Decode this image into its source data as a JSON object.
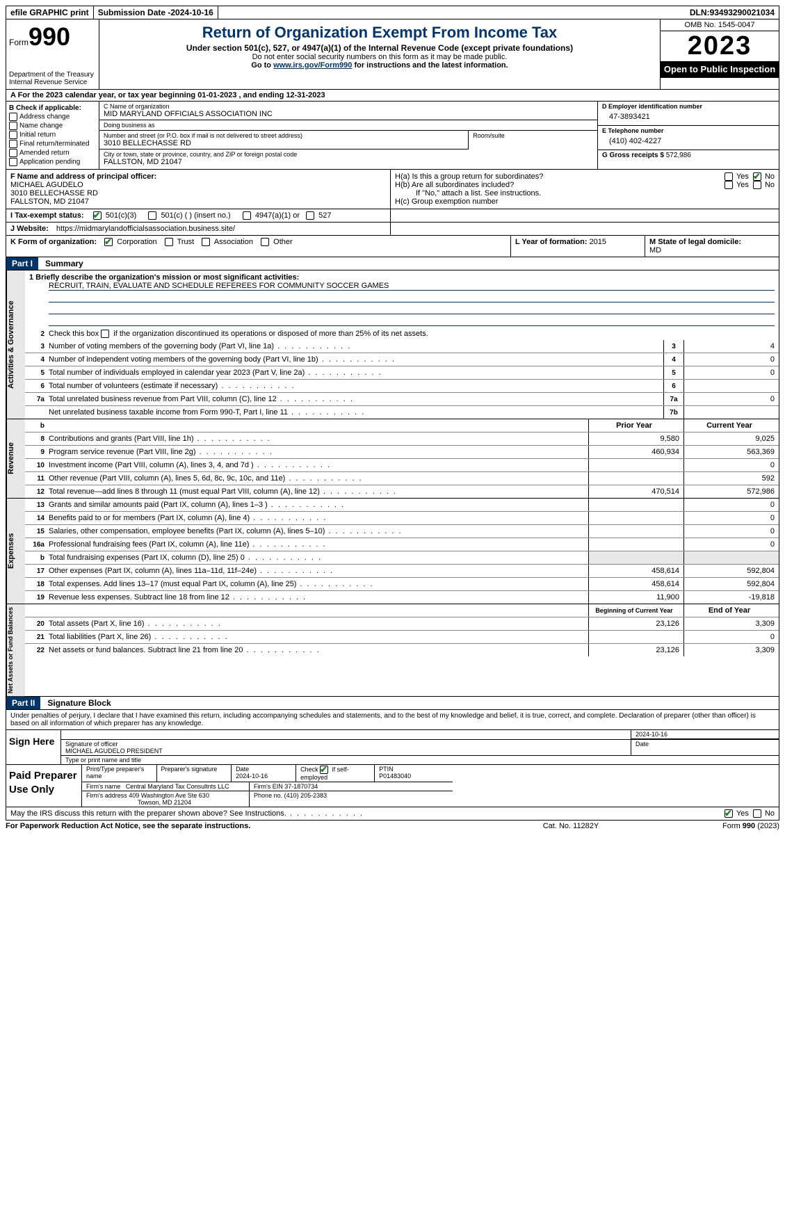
{
  "topbar": {
    "efile": "efile GRAPHIC print",
    "subdate_label": "Submission Date - ",
    "subdate": "2024-10-16",
    "dln_label": "DLN: ",
    "dln": "93493290021034"
  },
  "header": {
    "form_label": "Form",
    "form_num": "990",
    "dept": "Department of the Treasury\nInternal Revenue Service",
    "title": "Return of Organization Exempt From Income Tax",
    "sub1": "Under section 501(c), 527, or 4947(a)(1) of the Internal Revenue Code (except private foundations)",
    "sub2": "Do not enter social security numbers on this form as it may be made public.",
    "sub3a": "Go to ",
    "sub3link": "www.irs.gov/Form990",
    "sub3b": " for instructions and the latest information.",
    "omb": "OMB No. 1545-0047",
    "year": "2023",
    "inspect": "Open to Public Inspection"
  },
  "lineA": {
    "text": "A For the 2023 calendar year, or tax year beginning 01-01-2023   , and ending 12-31-2023"
  },
  "boxB": {
    "label": "B Check if applicable:",
    "items": [
      "Address change",
      "Name change",
      "Initial return",
      "Final return/terminated",
      "Amended return",
      "Application pending"
    ]
  },
  "boxC": {
    "name_label": "C Name of organization",
    "name": "MID MARYLAND OFFICIALS ASSOCIATION INC",
    "dba_label": "Doing business as",
    "dba": "",
    "street_label": "Number and street (or P.O. box if mail is not delivered to street address)",
    "street": "3010 BELLECHASSE RD",
    "room_label": "Room/suite",
    "city_label": "City or town, state or province, country, and ZIP or foreign postal code",
    "city": "FALLSTON, MD  21047"
  },
  "boxD": {
    "label": "D Employer identification number",
    "val": "47-3893421"
  },
  "boxE": {
    "label": "E Telephone number",
    "val": "(410) 402-4227"
  },
  "boxG": {
    "label": "G Gross receipts $ ",
    "val": "572,986"
  },
  "boxF": {
    "label": "F  Name and address of principal officer:",
    "l1": "MICHAEL AGUDELO",
    "l2": "3010 BELLECHASSE RD",
    "l3": "FALLSTON, MD  21047"
  },
  "boxH": {
    "a": "H(a)  Is this a group return for subordinates?",
    "b": "H(b)  Are all subordinates included?",
    "bnote": "If \"No,\" attach a list. See instructions.",
    "c": "H(c)  Group exemption number"
  },
  "boxI": {
    "label": "I   Tax-exempt status:",
    "o1": "501(c)(3)",
    "o2": "501(c) (  ) (insert no.)",
    "o3": "4947(a)(1) or",
    "o4": "527"
  },
  "boxJ": {
    "label": "J   Website:",
    "val": "https://midmarylandofficialsassociation.business.site/"
  },
  "boxK": {
    "label": "K Form of organization:",
    "opts": [
      "Corporation",
      "Trust",
      "Association",
      "Other"
    ]
  },
  "boxL": {
    "label": "L Year of formation: ",
    "val": "2015"
  },
  "boxM": {
    "label": "M State of legal domicile:",
    "val": "MD"
  },
  "part1": {
    "hdr": "Part I",
    "title": "Summary"
  },
  "mission": {
    "q": "1  Briefly describe the organization's mission or most significant activities:",
    "a": "RECRUIT, TRAIN, EVALUATE AND SCHEDULE REFEREES FOR COMMUNITY SOCCER GAMES"
  },
  "gov": {
    "side": "Activities & Governance",
    "l2": "Check this box         if the organization discontinued its operations or disposed of more than 25% of its net assets.",
    "rows": [
      {
        "n": "3",
        "d": "Number of voting members of the governing body (Part VI, line 1a)",
        "box": "3",
        "v": "4"
      },
      {
        "n": "4",
        "d": "Number of independent voting members of the governing body (Part VI, line 1b)",
        "box": "4",
        "v": "0"
      },
      {
        "n": "5",
        "d": "Total number of individuals employed in calendar year 2023 (Part V, line 2a)",
        "box": "5",
        "v": "0"
      },
      {
        "n": "6",
        "d": "Total number of volunteers (estimate if necessary)",
        "box": "6",
        "v": ""
      },
      {
        "n": "7a",
        "d": "Total unrelated business revenue from Part VIII, column (C), line 12",
        "box": "7a",
        "v": "0"
      },
      {
        "n": "",
        "d": "Net unrelated business taxable income from Form 990-T, Part I, line 11",
        "box": "7b",
        "v": ""
      }
    ]
  },
  "rev": {
    "side": "Revenue",
    "hdr_prior": "Prior Year",
    "hdr_curr": "Current Year",
    "rows": [
      {
        "n": "8",
        "d": "Contributions and grants (Part VIII, line 1h)",
        "p": "9,580",
        "c": "9,025"
      },
      {
        "n": "9",
        "d": "Program service revenue (Part VIII, line 2g)",
        "p": "460,934",
        "c": "563,369"
      },
      {
        "n": "10",
        "d": "Investment income (Part VIII, column (A), lines 3, 4, and 7d )",
        "p": "",
        "c": "0"
      },
      {
        "n": "11",
        "d": "Other revenue (Part VIII, column (A), lines 5, 6d, 8c, 9c, 10c, and 11e)",
        "p": "",
        "c": "592"
      },
      {
        "n": "12",
        "d": "Total revenue—add lines 8 through 11 (must equal Part VIII, column (A), line 12)",
        "p": "470,514",
        "c": "572,986"
      }
    ]
  },
  "exp": {
    "side": "Expenses",
    "rows": [
      {
        "n": "13",
        "d": "Grants and similar amounts paid (Part IX, column (A), lines 1–3 )",
        "p": "",
        "c": "0"
      },
      {
        "n": "14",
        "d": "Benefits paid to or for members (Part IX, column (A), line 4)",
        "p": "",
        "c": "0"
      },
      {
        "n": "15",
        "d": "Salaries, other compensation, employee benefits (Part IX, column (A), lines 5–10)",
        "p": "",
        "c": "0"
      },
      {
        "n": "16a",
        "d": "Professional fundraising fees (Part IX, column (A), line 11e)",
        "p": "",
        "c": "0"
      },
      {
        "n": "b",
        "d": "Total fundraising expenses (Part IX, column (D), line 25) 0",
        "p": "SHADE",
        "c": "SHADE"
      },
      {
        "n": "17",
        "d": "Other expenses (Part IX, column (A), lines 11a–11d, 11f–24e)",
        "p": "458,614",
        "c": "592,804"
      },
      {
        "n": "18",
        "d": "Total expenses. Add lines 13–17 (must equal Part IX, column (A), line 25)",
        "p": "458,614",
        "c": "592,804"
      },
      {
        "n": "19",
        "d": "Revenue less expenses. Subtract line 18 from line 12",
        "p": "11,900",
        "c": "-19,818"
      }
    ]
  },
  "net": {
    "side": "Net Assets or Fund Balances",
    "hdr_prior": "Beginning of Current Year",
    "hdr_curr": "End of Year",
    "rows": [
      {
        "n": "20",
        "d": "Total assets (Part X, line 16)",
        "p": "23,126",
        "c": "3,309"
      },
      {
        "n": "21",
        "d": "Total liabilities (Part X, line 26)",
        "p": "",
        "c": "0"
      },
      {
        "n": "22",
        "d": "Net assets or fund balances. Subtract line 21 from line 20",
        "p": "23,126",
        "c": "3,309"
      }
    ]
  },
  "part2": {
    "hdr": "Part II",
    "title": "Signature Block"
  },
  "penalty": "Under penalties of perjury, I declare that I have examined this return, including accompanying schedules and statements, and to the best of my knowledge and belief, it is true, correct, and complete. Declaration of preparer (other than officer) is based on all information of which preparer has any knowledge.",
  "sign": {
    "label": "Sign Here",
    "date": "2024-10-16",
    "sig_label": "Signature of officer",
    "name": "MICHAEL AGUDELO PRESIDENT",
    "type_label": "Type or print name and title",
    "date_label": "Date"
  },
  "prep": {
    "label": "Paid Preparer Use Only",
    "c1": "Print/Type preparer's name",
    "c2": "Preparer's signature",
    "c3": "Date",
    "c3v": "2024-10-16",
    "c4a": "Check",
    "c4b": "if self-employed",
    "c5": "PTIN",
    "c5v": "P01483040",
    "firm_label": "Firm's name",
    "firm": "Central Maryland Tax Consultnts LLC",
    "ein_label": "Firm's EIN ",
    "ein": "37-1870734",
    "addr_label": "Firm's address ",
    "addr1": "409 Washington Ave Ste 630",
    "addr2": "Towson, MD  21204",
    "phone_label": "Phone no. ",
    "phone": "(410) 205-2383"
  },
  "discuss": "May the IRS discuss this return with the preparer shown above? See Instructions.",
  "yes": "Yes",
  "no": "No",
  "footer": {
    "l": "For Paperwork Reduction Act Notice, see the separate instructions.",
    "m": "Cat. No. 11282Y",
    "r": "Form 990 (2023)"
  }
}
